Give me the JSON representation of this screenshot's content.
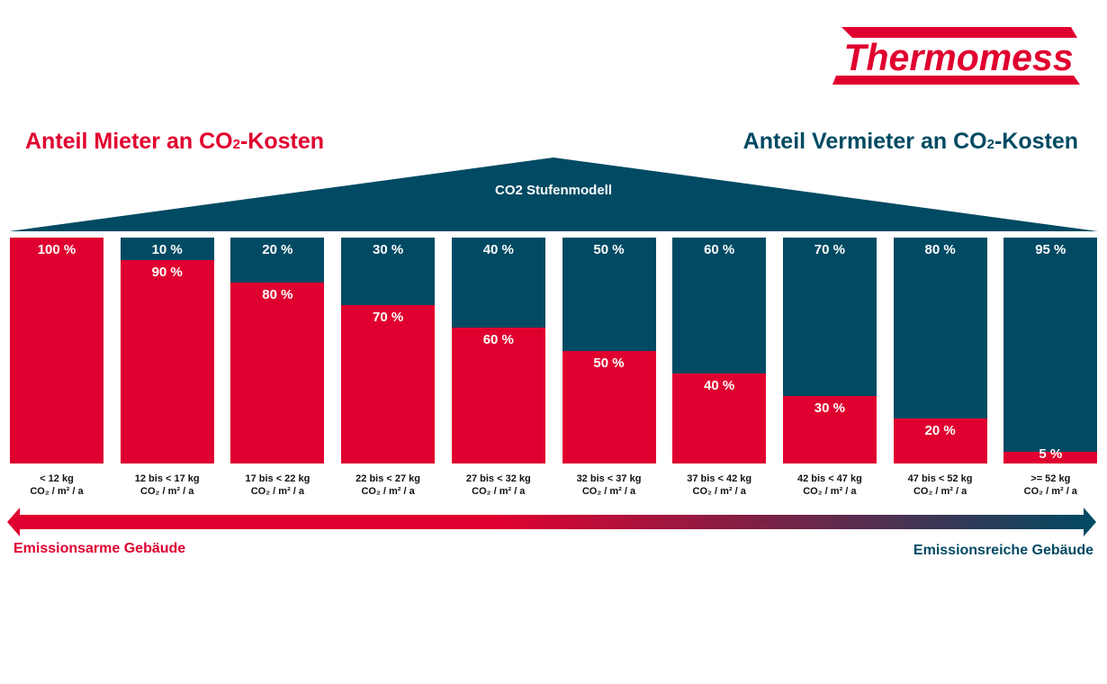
{
  "logo": {
    "text": "Thermomess"
  },
  "colors": {
    "tenant": "#e0002f",
    "landlord": "#004a63"
  },
  "chart_data": {
    "type": "bar",
    "stacked": true,
    "title": "CO2 Stufenmodell",
    "left_title": {
      "main": "Anteil Mieter an CO",
      "sub": "2",
      "rest": "-Kosten"
    },
    "right_title": {
      "main": "Anteil Vermieter an CO",
      "sub": "2",
      "rest": "-Kosten"
    },
    "categories": [
      "< 12 kg",
      "12 bis < 17 kg",
      "17 bis < 22 kg",
      "22 bis < 27 kg",
      "27 bis < 32 kg",
      "32 bis < 37 kg",
      "37 bis < 42 kg",
      "42 bis < 47 kg",
      "47 bis < 52 kg",
      ">= 52 kg"
    ],
    "unit_label": "CO₂ / m² / a",
    "series": [
      {
        "name": "Mieter",
        "values": [
          100,
          90,
          80,
          70,
          60,
          50,
          40,
          30,
          20,
          5
        ]
      },
      {
        "name": "Vermieter",
        "values": [
          0,
          10,
          20,
          30,
          40,
          50,
          60,
          70,
          80,
          95
        ]
      }
    ],
    "ylim": [
      0,
      100
    ],
    "arrow_left_label": "Emissionsarme Gebäude",
    "arrow_right_label": "Emissionsreiche Gebäude"
  }
}
